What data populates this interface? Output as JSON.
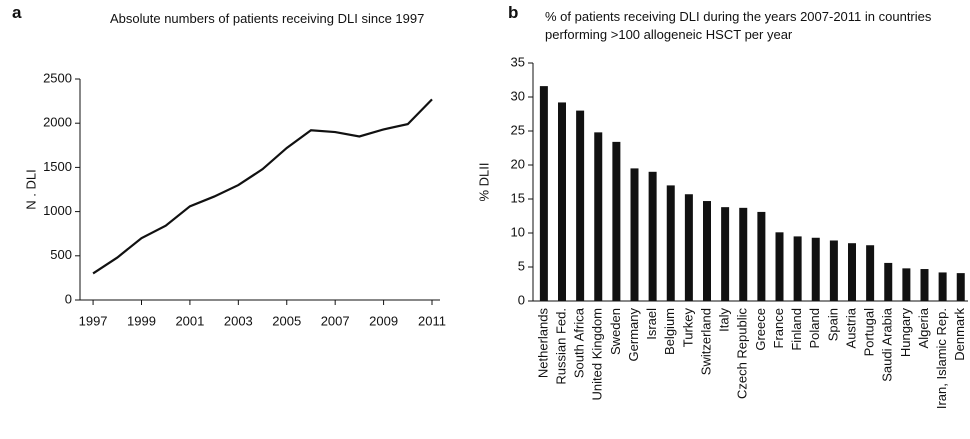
{
  "chart_data": [
    {
      "type": "line",
      "label": "a",
      "title": "Absolute numbers of patients receiving DLI since 1997",
      "y_label": "N . DLI",
      "x": [
        1997,
        1998,
        1999,
        2000,
        2001,
        2002,
        2003,
        2004,
        2005,
        2006,
        2007,
        2008,
        2009,
        2010,
        2011
      ],
      "series": [
        {
          "name": "DLI",
          "color": "#111111",
          "values": [
            300,
            480,
            700,
            840,
            1060,
            1170,
            1300,
            1480,
            1720,
            1920,
            1900,
            1850,
            1930,
            1990,
            2270
          ]
        }
      ],
      "xlim": [
        1996.46,
        2011.33
      ],
      "xticks": [
        1997,
        1999,
        2001,
        2003,
        2005,
        2007,
        2009,
        2011
      ],
      "ylim": [
        0,
        2500
      ],
      "yticks": [
        0,
        500,
        1000,
        1500,
        2000,
        2500
      ],
      "grid": false
    },
    {
      "type": "bar",
      "label": "b",
      "title": "% of patients receiving DLI during the years 2007-2011 in countries performing >100 allogeneic HSCT per year",
      "y_label": "% DLII",
      "categories": [
        "Netherlands",
        "Russian Fed.",
        "South Africa",
        "United Kingdom",
        "Sweden",
        "Germany",
        "Israel",
        "Belgium",
        "Turkey",
        "Switzerland",
        "Italy",
        "Czech Republic",
        "Greece",
        "France",
        "Finland",
        "Poland",
        "Spain",
        "Austria",
        "Portugal",
        "Saudi Arabia",
        "Hungary",
        "Algeria",
        "Iran, Islamic Rep.",
        "Denmark"
      ],
      "values": [
        31.6,
        29.2,
        28,
        24.8,
        23.4,
        19.5,
        19,
        17,
        15.7,
        14.7,
        13.8,
        13.7,
        13.1,
        10.1,
        9.5,
        9.3,
        8.9,
        8.5,
        8.2,
        5.6,
        4.8,
        4.7,
        4.2,
        4.1
      ],
      "color": "#111111",
      "ylim": [
        0,
        35
      ],
      "yticks": [
        0,
        5,
        10,
        15,
        20,
        25,
        30,
        35
      ],
      "grid": false
    }
  ]
}
